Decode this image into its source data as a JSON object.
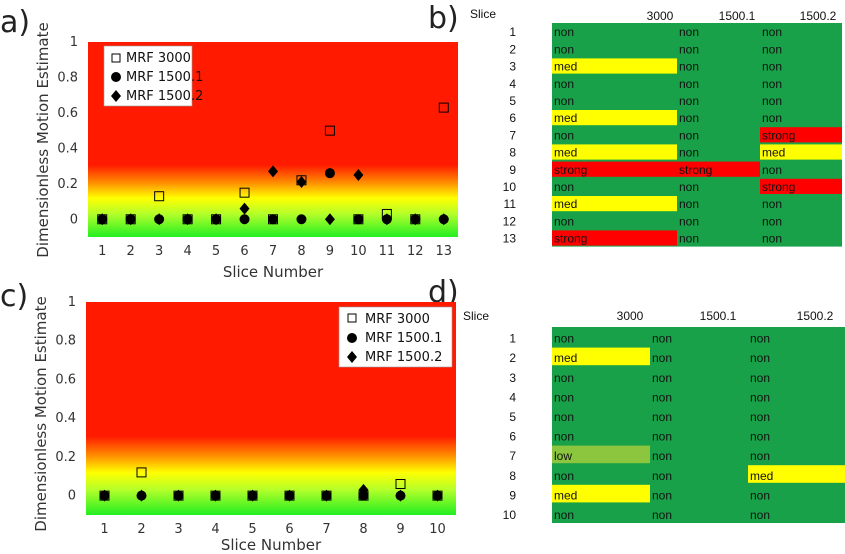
{
  "panels": {
    "a": "a)",
    "b": "b)",
    "c": "c)",
    "d": "d)"
  },
  "colors": {
    "non": "#19a149",
    "med": "#ffff00",
    "strong": "#ff0000",
    "low": "#8cc63f",
    "plot_red": "#ff1a00",
    "plot_green": "#22ee22"
  },
  "chart_data": [
    {
      "type": "scatter",
      "panel": "a",
      "xlabel": "Slice Number",
      "ylabel": "Dimensionless Motion Estimate",
      "xlim": [
        0.5,
        13.5
      ],
      "ylim": [
        -0.1,
        1.0
      ],
      "yticks": [
        0,
        0.2,
        0.4,
        0.6,
        0.8,
        1
      ],
      "ytick_labels": [
        "0",
        "0.2",
        "0.4",
        "0.6",
        "0.8",
        "1"
      ],
      "xticks": [
        1,
        2,
        3,
        4,
        5,
        6,
        7,
        8,
        9,
        10,
        11,
        12,
        13
      ],
      "legend_position": "top-left",
      "series": [
        {
          "name": "MRF 3000",
          "marker": "square",
          "x": [
            1,
            2,
            3,
            4,
            5,
            6,
            7,
            8,
            9,
            10,
            11,
            12,
            13
          ],
          "y": [
            0,
            0,
            0.13,
            0,
            0,
            0.15,
            0,
            0.22,
            0.5,
            0,
            0.03,
            0,
            0.63
          ]
        },
        {
          "name": "MRF 1500.1",
          "marker": "circle",
          "x": [
            1,
            2,
            3,
            4,
            5,
            6,
            7,
            8,
            9,
            10,
            11,
            12,
            13
          ],
          "y": [
            0,
            0,
            0,
            0,
            0,
            0,
            0,
            0,
            0.26,
            0,
            0,
            0,
            0
          ]
        },
        {
          "name": "MRF 1500.2",
          "marker": "diamond",
          "x": [
            1,
            2,
            3,
            4,
            5,
            6,
            7,
            8,
            9,
            10,
            11,
            12,
            13
          ],
          "y": [
            0,
            0,
            0,
            0,
            0,
            0.06,
            0.27,
            0.21,
            0,
            0.25,
            0,
            0,
            0
          ]
        }
      ]
    },
    {
      "type": "table",
      "panel": "b",
      "corner_label": "Slice",
      "columns": [
        "3000",
        "1500.1",
        "1500.2"
      ],
      "rows": [
        {
          "slice": "1",
          "cells": [
            "non",
            "non",
            "non"
          ]
        },
        {
          "slice": "2",
          "cells": [
            "non",
            "non",
            "non"
          ]
        },
        {
          "slice": "3",
          "cells": [
            "med",
            "non",
            "non"
          ]
        },
        {
          "slice": "4",
          "cells": [
            "non",
            "non",
            "non"
          ]
        },
        {
          "slice": "5",
          "cells": [
            "non",
            "non",
            "non"
          ]
        },
        {
          "slice": "6",
          "cells": [
            "med",
            "non",
            "non"
          ]
        },
        {
          "slice": "7",
          "cells": [
            "non",
            "non",
            "strong"
          ]
        },
        {
          "slice": "8",
          "cells": [
            "med",
            "non",
            "med"
          ]
        },
        {
          "slice": "9",
          "cells": [
            "strong",
            "strong",
            "non"
          ]
        },
        {
          "slice": "10",
          "cells": [
            "non",
            "non",
            "strong"
          ]
        },
        {
          "slice": "11",
          "cells": [
            "med",
            "non",
            "non"
          ]
        },
        {
          "slice": "12",
          "cells": [
            "non",
            "non",
            "non"
          ]
        },
        {
          "slice": "13",
          "cells": [
            "strong",
            "non",
            "non"
          ]
        }
      ]
    },
    {
      "type": "scatter",
      "panel": "c",
      "xlabel": "Slice Number",
      "ylabel": "Dimensionless Motion Estimate",
      "xlim": [
        0.5,
        10.5
      ],
      "ylim": [
        -0.1,
        1.0
      ],
      "yticks": [
        0,
        0.2,
        0.4,
        0.6,
        0.8,
        1
      ],
      "ytick_labels": [
        "0",
        "0.2",
        "0.4",
        "0.6",
        "0.8",
        "1"
      ],
      "xticks": [
        1,
        2,
        3,
        4,
        5,
        6,
        7,
        8,
        9,
        10
      ],
      "legend_position": "top-right",
      "series": [
        {
          "name": "MRF 3000",
          "marker": "square",
          "x": [
            1,
            2,
            3,
            4,
            5,
            6,
            7,
            8,
            9,
            10
          ],
          "y": [
            0,
            0.12,
            0,
            0,
            0,
            0,
            0,
            0,
            0.06,
            0
          ]
        },
        {
          "name": "MRF 1500.1",
          "marker": "circle",
          "x": [
            1,
            2,
            3,
            4,
            5,
            6,
            7,
            8,
            9,
            10
          ],
          "y": [
            0,
            0,
            0,
            0,
            0,
            0,
            0,
            0,
            0,
            0
          ]
        },
        {
          "name": "MRF 1500.2",
          "marker": "diamond",
          "x": [
            1,
            2,
            3,
            4,
            5,
            6,
            7,
            8,
            9,
            10
          ],
          "y": [
            0,
            0,
            0,
            0,
            0,
            0,
            0,
            0.03,
            0,
            0
          ]
        }
      ]
    },
    {
      "type": "table",
      "panel": "d",
      "corner_label": "Slice",
      "columns": [
        "3000",
        "1500.1",
        "1500.2"
      ],
      "rows": [
        {
          "slice": "1",
          "cells": [
            "non",
            "non",
            "non"
          ]
        },
        {
          "slice": "2",
          "cells": [
            "med",
            "non",
            "non"
          ]
        },
        {
          "slice": "3",
          "cells": [
            "non",
            "non",
            "non"
          ]
        },
        {
          "slice": "4",
          "cells": [
            "non",
            "non",
            "non"
          ]
        },
        {
          "slice": "5",
          "cells": [
            "non",
            "non",
            "non"
          ]
        },
        {
          "slice": "6",
          "cells": [
            "non",
            "non",
            "non"
          ]
        },
        {
          "slice": "7",
          "cells": [
            "low",
            "non",
            "non"
          ]
        },
        {
          "slice": "8",
          "cells": [
            "non",
            "non",
            "med"
          ]
        },
        {
          "slice": "9",
          "cells": [
            "med",
            "non",
            "non"
          ]
        },
        {
          "slice": "10",
          "cells": [
            "non",
            "non",
            "non"
          ]
        }
      ]
    }
  ]
}
